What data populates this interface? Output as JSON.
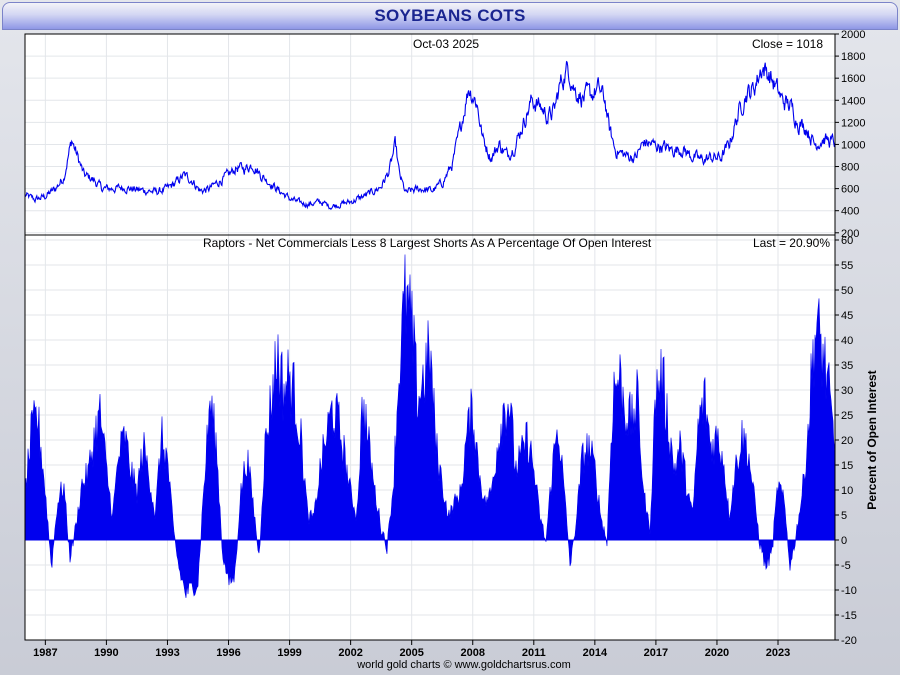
{
  "title": "SOYBEANS COTS",
  "credit": "world gold charts © www.goldchartsrus.com",
  "colors": {
    "series": "#0000ee",
    "grid": "#e3e6ea"
  },
  "chart_data": [
    {
      "type": "line",
      "header_left": "Oct-03  2025",
      "header_right": "Close = 1018",
      "y_ticks": [
        200,
        400,
        600,
        800,
        1000,
        1200,
        1400,
        1600,
        1800,
        2000
      ],
      "ylim": [
        180,
        2000
      ],
      "xlim": [
        1986.0,
        2025.8
      ],
      "grid": true,
      "series": [
        {
          "x": [
            1986.0,
            1986.5,
            1987.0,
            1987.5,
            1987.9,
            1988.3,
            1988.6,
            1988.9,
            1989.3,
            1989.8,
            1990.3,
            1990.9,
            1991.5,
            1992.0,
            1992.5,
            1993.0,
            1993.4,
            1993.8,
            1994.2,
            1994.6,
            1995.0,
            1995.5,
            1996.0,
            1996.4,
            1996.8,
            1997.2,
            1997.6,
            1998.0,
            1998.5,
            1999.0,
            1999.5,
            2000.0,
            2000.5,
            2001.0,
            2001.5,
            2002.0,
            2002.5,
            2003.0,
            2003.5,
            2003.9,
            2004.2,
            2004.4,
            2004.7,
            2005.0,
            2005.5,
            2006.0,
            2006.5,
            2007.0,
            2007.4,
            2007.8,
            2008.2,
            2008.5,
            2008.9,
            2009.3,
            2009.7,
            2010.1,
            2010.5,
            2010.9,
            2011.3,
            2011.7,
            2012.0,
            2012.3,
            2012.7,
            2013.0,
            2013.4,
            2013.8,
            2014.2,
            2014.5,
            2014.7,
            2015.0,
            2015.5,
            2016.0,
            2016.4,
            2016.8,
            2017.3,
            2017.8,
            2018.3,
            2018.7,
            2019.2,
            2019.7,
            2020.2,
            2020.6,
            2021.0,
            2021.4,
            2021.8,
            2022.2,
            2022.5,
            2022.8,
            2023.2,
            2023.6,
            2024.0,
            2024.4,
            2024.8,
            2025.2,
            2025.75
          ],
          "y": [
            540,
            500,
            530,
            600,
            700,
            1040,
            880,
            720,
            690,
            600,
            600,
            610,
            590,
            580,
            570,
            600,
            650,
            720,
            680,
            580,
            590,
            660,
            720,
            790,
            780,
            820,
            720,
            660,
            580,
            510,
            470,
            460,
            480,
            440,
            460,
            480,
            520,
            560,
            620,
            760,
            1000,
            720,
            560,
            580,
            600,
            580,
            650,
            820,
            1150,
            1520,
            1380,
            1050,
            880,
            1000,
            900,
            1000,
            1200,
            1400,
            1350,
            1250,
            1300,
            1550,
            1700,
            1500,
            1420,
            1450,
            1500,
            1400,
            1150,
            950,
            900,
            880,
            1020,
            1000,
            980,
            950,
            960,
            900,
            860,
            880,
            880,
            1000,
            1250,
            1450,
            1500,
            1700,
            1650,
            1550,
            1400,
            1350,
            1200,
            1150,
            1000,
            1050,
            1018
          ]
        }
      ]
    },
    {
      "type": "area",
      "title": "Raptors - Net Commercials Less 8 Largest Shorts As A Percentage Of Open Interest",
      "header_right": "Last = 20.90%",
      "ylabel": "Percent of Open Interest",
      "y_ticks": [
        -20,
        -15,
        -10,
        -5,
        0,
        5,
        10,
        15,
        20,
        25,
        30,
        35,
        40,
        45,
        50,
        55,
        60
      ],
      "ylim": [
        -20,
        61
      ],
      "xlim": [
        1986.0,
        2025.8
      ],
      "grid": true,
      "series": [
        {
          "x": [
            1986.0,
            1986.3,
            1986.6,
            1986.9,
            1987.1,
            1987.3,
            1987.6,
            1987.9,
            1988.2,
            1988.5,
            1988.8,
            1989.1,
            1989.4,
            1989.7,
            1990.0,
            1990.3,
            1990.6,
            1990.9,
            1991.2,
            1991.5,
            1991.8,
            1992.1,
            1992.4,
            1992.7,
            1993.0,
            1993.3,
            1993.6,
            1993.9,
            1994.2,
            1994.5,
            1994.8,
            1995.1,
            1995.4,
            1995.7,
            1996.0,
            1996.3,
            1996.6,
            1996.9,
            1997.2,
            1997.5,
            1997.8,
            1998.1,
            1998.4,
            1998.7,
            1999.0,
            1999.3,
            1999.6,
            1999.9,
            2000.2,
            2000.5,
            2000.8,
            2001.1,
            2001.4,
            2001.7,
            2002.0,
            2002.3,
            2002.6,
            2002.9,
            2003.2,
            2003.5,
            2003.8,
            2004.1,
            2004.4,
            2004.7,
            2005.0,
            2005.3,
            2005.6,
            2005.9,
            2006.2,
            2006.5,
            2006.8,
            2007.1,
            2007.4,
            2007.7,
            2008.0,
            2008.3,
            2008.6,
            2008.9,
            2009.2,
            2009.5,
            2009.8,
            2010.1,
            2010.4,
            2010.7,
            2011.0,
            2011.3,
            2011.6,
            2011.9,
            2012.2,
            2012.5,
            2012.8,
            2013.1,
            2013.4,
            2013.7,
            2014.0,
            2014.3,
            2014.6,
            2014.9,
            2015.2,
            2015.5,
            2015.8,
            2016.1,
            2016.4,
            2016.7,
            2017.0,
            2017.3,
            2017.6,
            2017.9,
            2018.2,
            2018.5,
            2018.8,
            2019.1,
            2019.4,
            2019.7,
            2020.0,
            2020.3,
            2020.6,
            2020.9,
            2021.2,
            2021.5,
            2021.8,
            2022.1,
            2022.4,
            2022.7,
            2023.0,
            2023.3,
            2023.6,
            2023.9,
            2024.2,
            2024.5,
            2024.8,
            2025.1,
            2025.4,
            2025.75
          ],
          "y": [
            10,
            22,
            27,
            15,
            5,
            -5,
            8,
            12,
            -3,
            3,
            12,
            14,
            22,
            27,
            15,
            5,
            18,
            22,
            15,
            10,
            20,
            14,
            5,
            22,
            17,
            2,
            -6,
            -10,
            -9,
            -8,
            12,
            30,
            20,
            -2,
            -8,
            -7,
            10,
            18,
            8,
            -3,
            20,
            30,
            40,
            32,
            35,
            30,
            20,
            5,
            5,
            15,
            22,
            28,
            25,
            18,
            10,
            5,
            30,
            20,
            10,
            3,
            -1,
            12,
            38,
            52,
            45,
            30,
            35,
            40,
            20,
            12,
            5,
            8,
            10,
            22,
            28,
            15,
            8,
            10,
            20,
            28,
            30,
            15,
            18,
            22,
            15,
            5,
            0,
            15,
            25,
            10,
            -5,
            5,
            18,
            20,
            15,
            5,
            0,
            32,
            35,
            28,
            25,
            30,
            10,
            2,
            32,
            35,
            25,
            15,
            20,
            12,
            5,
            25,
            30,
            20,
            22,
            18,
            5,
            15,
            22,
            20,
            10,
            0,
            -5,
            -2,
            12,
            8,
            -5,
            2,
            10,
            25,
            45,
            42,
            35,
            20.9
          ]
        }
      ]
    }
  ],
  "x_axis": {
    "tick_labels": [
      "1987",
      "1990",
      "1993",
      "1996",
      "1999",
      "2002",
      "2005",
      "2008",
      "2011",
      "2014",
      "2017",
      "2020",
      "2023"
    ],
    "tick_values": [
      1987,
      1990,
      1993,
      1996,
      1999,
      2002,
      2005,
      2008,
      2011,
      2014,
      2017,
      2020,
      2023
    ]
  }
}
